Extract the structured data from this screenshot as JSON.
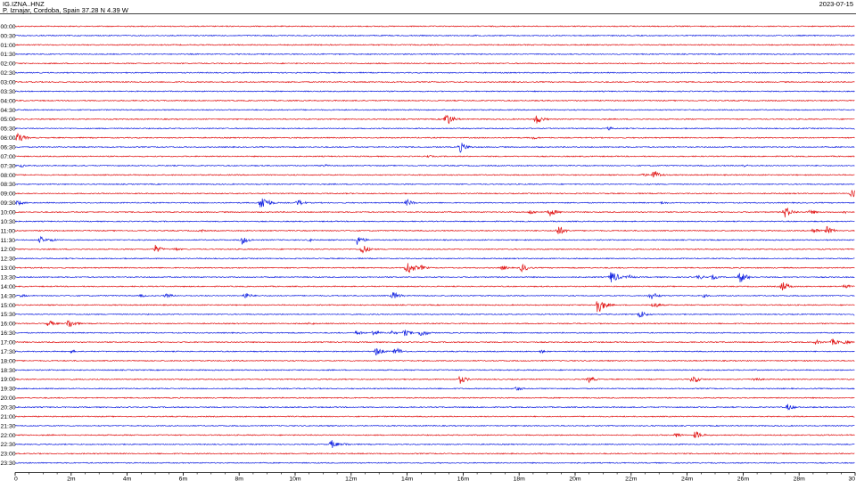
{
  "header": {
    "station": "IG.IZNA..HNZ",
    "location": "P. Iznajar, Cordoba, Spain  37.28 N 4.39 W",
    "date": "2023-07-15"
  },
  "colors": {
    "odd": "#e01010",
    "even": "#1020e0",
    "axis": "#000000"
  },
  "chart_data": {
    "type": "line",
    "title": "",
    "xlabel": "",
    "ylabel": "",
    "x_range_minutes": [
      0,
      30
    ],
    "row_labels": [
      "00:00",
      "00:30",
      "01:00",
      "01:30",
      "02:00",
      "02:30",
      "03:00",
      "03:30",
      "04:00",
      "04:30",
      "05:00",
      "05:30",
      "06:00",
      "06:30",
      "07:00",
      "07:30",
      "08:00",
      "08:30",
      "09:00",
      "09:30",
      "10:00",
      "10:30",
      "11:00",
      "11:30",
      "12:00",
      "12:30",
      "13:00",
      "13:30",
      "14:00",
      "14:30",
      "15:00",
      "15:30",
      "16:00",
      "16:30",
      "17:00",
      "17:30",
      "18:00",
      "18:30",
      "19:00",
      "19:30",
      "20:00",
      "20:30",
      "21:00",
      "21:30",
      "22:00",
      "22:30",
      "23:00",
      "23:30"
    ],
    "x_ticks": [
      {
        "value": 0,
        "label": "0"
      },
      {
        "value": 2,
        "label": "2m"
      },
      {
        "value": 4,
        "label": "4m"
      },
      {
        "value": 6,
        "label": "6m"
      },
      {
        "value": 8,
        "label": "8m"
      },
      {
        "value": 10,
        "label": "10m"
      },
      {
        "value": 12,
        "label": "12m"
      },
      {
        "value": 14,
        "label": "14m"
      },
      {
        "value": 16,
        "label": "16m"
      },
      {
        "value": 18,
        "label": "18m"
      },
      {
        "value": 20,
        "label": "20m"
      },
      {
        "value": 22,
        "label": "22m"
      },
      {
        "value": 24,
        "label": "24m"
      },
      {
        "value": 26,
        "label": "26m"
      },
      {
        "value": 28,
        "label": "28m"
      },
      {
        "value": 30,
        "label": "30"
      }
    ],
    "events": [
      {
        "row": 10,
        "minute": 15.4,
        "amplitude": 8
      },
      {
        "row": 10,
        "minute": 18.6,
        "amplitude": 6
      },
      {
        "row": 11,
        "minute": 21.2,
        "amplitude": 2
      },
      {
        "row": 11,
        "minute": 30.0,
        "amplitude": 5
      },
      {
        "row": 12,
        "minute": 0.1,
        "amplitude": 6
      },
      {
        "row": 12,
        "minute": 18.5,
        "amplitude": 2
      },
      {
        "row": 13,
        "minute": 15.9,
        "amplitude": 6
      },
      {
        "row": 14,
        "minute": 14.7,
        "amplitude": 2
      },
      {
        "row": 15,
        "minute": 0.2,
        "amplitude": 2
      },
      {
        "row": 15,
        "minute": 11.0,
        "amplitude": 2
      },
      {
        "row": 15,
        "minute": 26.0,
        "amplitude": 2
      },
      {
        "row": 16,
        "minute": 22.4,
        "amplitude": 2
      },
      {
        "row": 16,
        "minute": 22.8,
        "amplitude": 6
      },
      {
        "row": 18,
        "minute": 29.9,
        "amplitude": 6
      },
      {
        "row": 19,
        "minute": 0.1,
        "amplitude": 3
      },
      {
        "row": 19,
        "minute": 8.8,
        "amplitude": 10
      },
      {
        "row": 19,
        "minute": 10.1,
        "amplitude": 4
      },
      {
        "row": 19,
        "minute": 14.0,
        "amplitude": 4
      },
      {
        "row": 19,
        "minute": 23.1,
        "amplitude": 2
      },
      {
        "row": 20,
        "minute": 18.4,
        "amplitude": 3
      },
      {
        "row": 20,
        "minute": 19.1,
        "amplitude": 5
      },
      {
        "row": 20,
        "minute": 27.5,
        "amplitude": 7
      },
      {
        "row": 20,
        "minute": 28.4,
        "amplitude": 3
      },
      {
        "row": 20,
        "minute": 29.6,
        "amplitude": 2
      },
      {
        "row": 22,
        "minute": 6.6,
        "amplitude": 2
      },
      {
        "row": 22,
        "minute": 19.4,
        "amplitude": 6
      },
      {
        "row": 22,
        "minute": 28.5,
        "amplitude": 4
      },
      {
        "row": 22,
        "minute": 29.0,
        "amplitude": 5
      },
      {
        "row": 23,
        "minute": 0.9,
        "amplitude": 4
      },
      {
        "row": 23,
        "minute": 1.3,
        "amplitude": 2
      },
      {
        "row": 23,
        "minute": 8.1,
        "amplitude": 5
      },
      {
        "row": 23,
        "minute": 10.5,
        "amplitude": 2
      },
      {
        "row": 23,
        "minute": 12.2,
        "amplitude": 6
      },
      {
        "row": 24,
        "minute": 5.0,
        "amplitude": 5
      },
      {
        "row": 24,
        "minute": 5.7,
        "amplitude": 2
      },
      {
        "row": 24,
        "minute": 12.4,
        "amplitude": 6
      },
      {
        "row": 26,
        "minute": 14.0,
        "amplitude": 9
      },
      {
        "row": 26,
        "minute": 14.5,
        "amplitude": 3
      },
      {
        "row": 26,
        "minute": 17.4,
        "amplitude": 3
      },
      {
        "row": 26,
        "minute": 18.1,
        "amplitude": 5
      },
      {
        "row": 27,
        "minute": 21.3,
        "amplitude": 8
      },
      {
        "row": 27,
        "minute": 21.9,
        "amplitude": 3
      },
      {
        "row": 27,
        "minute": 24.4,
        "amplitude": 3
      },
      {
        "row": 27,
        "minute": 24.9,
        "amplitude": 3
      },
      {
        "row": 27,
        "minute": 25.9,
        "amplitude": 7
      },
      {
        "row": 28,
        "minute": 27.4,
        "amplitude": 6
      },
      {
        "row": 28,
        "minute": 29.6,
        "amplitude": 3
      },
      {
        "row": 29,
        "minute": 0.2,
        "amplitude": 2
      },
      {
        "row": 29,
        "minute": 4.5,
        "amplitude": 2
      },
      {
        "row": 29,
        "minute": 5.4,
        "amplitude": 3
      },
      {
        "row": 29,
        "minute": 8.2,
        "amplitude": 4
      },
      {
        "row": 29,
        "minute": 13.5,
        "amplitude": 5
      },
      {
        "row": 29,
        "minute": 22.7,
        "amplitude": 5
      },
      {
        "row": 29,
        "minute": 24.6,
        "amplitude": 2
      },
      {
        "row": 30,
        "minute": 20.8,
        "amplitude": 11
      },
      {
        "row": 30,
        "minute": 22.8,
        "amplitude": 4
      },
      {
        "row": 31,
        "minute": 22.3,
        "amplitude": 5
      },
      {
        "row": 31,
        "minute": 30.0,
        "amplitude": 2
      },
      {
        "row": 32,
        "minute": 1.2,
        "amplitude": 4
      },
      {
        "row": 32,
        "minute": 1.9,
        "amplitude": 6
      },
      {
        "row": 32,
        "minute": 10.5,
        "amplitude": 2
      },
      {
        "row": 33,
        "minute": 12.2,
        "amplitude": 3
      },
      {
        "row": 33,
        "minute": 12.8,
        "amplitude": 4
      },
      {
        "row": 33,
        "minute": 13.4,
        "amplitude": 3
      },
      {
        "row": 33,
        "minute": 13.9,
        "amplitude": 4
      },
      {
        "row": 33,
        "minute": 14.5,
        "amplitude": 5
      },
      {
        "row": 34,
        "minute": 28.6,
        "amplitude": 3
      },
      {
        "row": 34,
        "minute": 29.2,
        "amplitude": 4
      },
      {
        "row": 34,
        "minute": 29.6,
        "amplitude": 3
      },
      {
        "row": 35,
        "minute": 2.0,
        "amplitude": 2
      },
      {
        "row": 35,
        "minute": 12.9,
        "amplitude": 5
      },
      {
        "row": 35,
        "minute": 13.6,
        "amplitude": 5
      },
      {
        "row": 35,
        "minute": 18.8,
        "amplitude": 2
      },
      {
        "row": 38,
        "minute": 15.9,
        "amplitude": 5
      },
      {
        "row": 38,
        "minute": 20.5,
        "amplitude": 4
      },
      {
        "row": 38,
        "minute": 24.2,
        "amplitude": 5
      },
      {
        "row": 38,
        "minute": 26.4,
        "amplitude": 3
      },
      {
        "row": 39,
        "minute": 17.9,
        "amplitude": 3
      },
      {
        "row": 41,
        "minute": 27.6,
        "amplitude": 4
      },
      {
        "row": 44,
        "minute": 23.6,
        "amplitude": 3
      },
      {
        "row": 44,
        "minute": 24.3,
        "amplitude": 5
      },
      {
        "row": 45,
        "minute": 11.3,
        "amplitude": 5
      },
      {
        "row": 45,
        "minute": 11.8,
        "amplitude": 2
      }
    ]
  }
}
